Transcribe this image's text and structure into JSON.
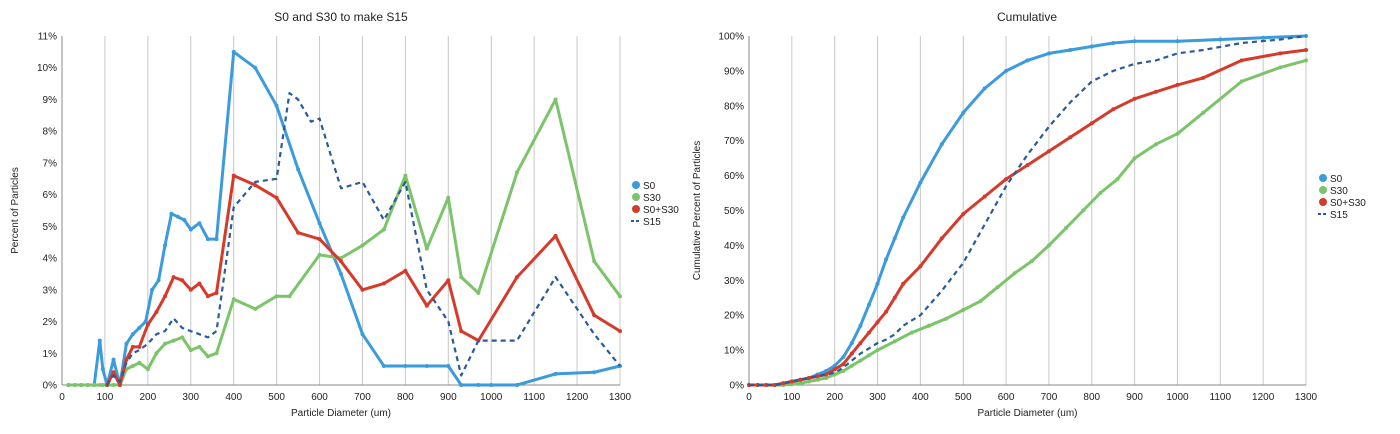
{
  "chart_data": [
    {
      "type": "line",
      "title": "S0 and S30 to make S15",
      "xlabel": "Particle Diameter (um)",
      "ylabel": "Percent of Particles",
      "xlim": [
        0,
        1300
      ],
      "ylim": [
        0,
        11
      ],
      "xticks": [
        "0",
        "100",
        "200",
        "300",
        "400",
        "500",
        "600",
        "700",
        "800",
        "900",
        "1000",
        "1100",
        "1200",
        "1300"
      ],
      "yticks": [
        "0%",
        "1%",
        "2%",
        "3%",
        "4%",
        "5%",
        "6%",
        "7%",
        "8%",
        "9%",
        "10%",
        "11%"
      ],
      "grid": "vertical",
      "legend": "right",
      "series": [
        {
          "name": "S0",
          "color": "#3b9bdc",
          "style": "solid",
          "x": [
            15,
            30,
            45,
            60,
            75,
            88,
            95,
            105,
            120,
            135,
            150,
            165,
            180,
            195,
            210,
            225,
            240,
            255,
            270,
            285,
            300,
            320,
            340,
            360,
            400,
            450,
            500,
            550,
            600,
            650,
            700,
            750,
            800,
            850,
            900,
            930,
            970,
            1000,
            1060,
            1150,
            1240,
            1300
          ],
          "y": [
            0,
            0,
            0,
            0,
            0,
            1.4,
            0.5,
            0,
            0.8,
            0,
            1.3,
            1.6,
            1.8,
            2.0,
            3.0,
            3.3,
            4.4,
            5.4,
            5.3,
            5.2,
            4.9,
            5.1,
            4.6,
            4.6,
            10.5,
            10.0,
            8.8,
            6.8,
            5.1,
            3.5,
            1.6,
            0.6,
            0.6,
            0.6,
            0.6,
            0,
            0,
            0,
            0,
            0.35,
            0.4,
            0.6
          ]
        },
        {
          "name": "S30",
          "color": "#7cc46a",
          "style": "solid",
          "x": [
            15,
            30,
            45,
            60,
            75,
            88,
            95,
            105,
            120,
            135,
            150,
            165,
            180,
            200,
            220,
            240,
            260,
            280,
            300,
            320,
            340,
            360,
            400,
            450,
            500,
            530,
            600,
            650,
            700,
            750,
            800,
            850,
            900,
            930,
            970,
            1060,
            1150,
            1240,
            1300
          ],
          "y": [
            0,
            0,
            0,
            0,
            0,
            0,
            0,
            0,
            0,
            0,
            0.5,
            0.6,
            0.7,
            0.5,
            1.0,
            1.3,
            1.4,
            1.5,
            1.1,
            1.2,
            0.9,
            1.0,
            2.7,
            2.4,
            2.8,
            2.8,
            4.1,
            4.0,
            4.4,
            4.9,
            6.6,
            4.3,
            5.9,
            3.4,
            2.9,
            6.7,
            9.0,
            3.9,
            2.8
          ]
        },
        {
          "name": "S0+S30",
          "color": "#d63a2a",
          "style": "solid",
          "x": [
            105,
            120,
            135,
            150,
            165,
            180,
            200,
            220,
            240,
            260,
            280,
            300,
            320,
            340,
            360,
            400,
            450,
            500,
            550,
            600,
            650,
            700,
            750,
            800,
            850,
            900,
            930,
            970,
            1060,
            1150,
            1240,
            1300
          ],
          "y": [
            0,
            0.4,
            0,
            0.8,
            1.2,
            1.2,
            1.9,
            2.3,
            2.8,
            3.4,
            3.3,
            3.0,
            3.2,
            2.8,
            2.9,
            6.6,
            6.3,
            5.9,
            4.8,
            4.6,
            3.9,
            3.0,
            3.2,
            3.6,
            2.5,
            3.3,
            1.7,
            1.4,
            3.4,
            4.7,
            2.2,
            1.7
          ]
        },
        {
          "name": "S15",
          "color": "#2a5b9a",
          "style": "dashed",
          "x": [
            105,
            120,
            135,
            150,
            165,
            180,
            200,
            220,
            240,
            260,
            280,
            300,
            320,
            340,
            360,
            400,
            450,
            500,
            530,
            550,
            580,
            600,
            650,
            700,
            750,
            800,
            850,
            900,
            930,
            970,
            1060,
            1150,
            1240,
            1300
          ],
          "y": [
            0,
            0.3,
            0.1,
            0.7,
            1.0,
            1.1,
            1.3,
            1.6,
            1.7,
            2.1,
            1.8,
            1.7,
            1.6,
            1.5,
            1.7,
            5.6,
            6.4,
            6.5,
            9.2,
            9.0,
            8.3,
            8.4,
            6.2,
            6.4,
            5.2,
            6.4,
            3.0,
            2.0,
            0.3,
            1.4,
            1.4,
            3.4,
            1.6,
            0.6
          ]
        }
      ]
    },
    {
      "type": "line",
      "title": "Cumulative",
      "xlabel": "Particle Diameter (um)",
      "ylabel": "Cumulative Percent of Particles",
      "xlim": [
        0,
        1300
      ],
      "ylim": [
        0,
        100
      ],
      "xticks": [
        "0",
        "100",
        "200",
        "300",
        "400",
        "500",
        "600",
        "700",
        "800",
        "900",
        "1000",
        "1100",
        "1200",
        "1300"
      ],
      "yticks": [
        "0%",
        "10%",
        "20%",
        "30%",
        "40%",
        "50%",
        "60%",
        "70%",
        "80%",
        "90%",
        "100%"
      ],
      "grid": "vertical",
      "legend": "right",
      "series": [
        {
          "name": "S0",
          "color": "#3b9bdc",
          "style": "solid",
          "x": [
            0,
            20,
            40,
            60,
            80,
            100,
            120,
            140,
            160,
            180,
            200,
            220,
            240,
            260,
            280,
            300,
            320,
            340,
            360,
            400,
            450,
            500,
            550,
            600,
            650,
            700,
            750,
            800,
            850,
            900,
            1000,
            1100,
            1200,
            1300
          ],
          "y": [
            0,
            0,
            0,
            0,
            0.5,
            1,
            1.5,
            2,
            3,
            4,
            5.5,
            8,
            12,
            17,
            23,
            29,
            36,
            42,
            48,
            58,
            69,
            78,
            85,
            90,
            93,
            95,
            96,
            97,
            98,
            98.5,
            98.5,
            99,
            99.5,
            100
          ]
        },
        {
          "name": "S30",
          "color": "#7cc46a",
          "style": "solid",
          "x": [
            0,
            20,
            40,
            60,
            80,
            100,
            120,
            140,
            160,
            180,
            200,
            220,
            240,
            260,
            280,
            300,
            340,
            380,
            420,
            460,
            500,
            540,
            580,
            620,
            660,
            700,
            740,
            780,
            820,
            860,
            900,
            950,
            1000,
            1060,
            1150,
            1240,
            1300
          ],
          "y": [
            0,
            0,
            0,
            0,
            0,
            0.2,
            0.5,
            1,
            1.5,
            2,
            3,
            4,
            5.5,
            7,
            8.5,
            10,
            12.5,
            15,
            17,
            19,
            21.5,
            24,
            28,
            32,
            35.5,
            40,
            45,
            50,
            55,
            59,
            65,
            69,
            72,
            78,
            87,
            91,
            93
          ]
        },
        {
          "name": "S0+S30",
          "color": "#d63a2a",
          "style": "solid",
          "x": [
            0,
            20,
            40,
            60,
            80,
            100,
            120,
            140,
            160,
            180,
            200,
            220,
            240,
            260,
            280,
            300,
            320,
            340,
            360,
            400,
            450,
            500,
            550,
            600,
            650,
            700,
            750,
            800,
            850,
            900,
            950,
            1000,
            1060,
            1150,
            1240,
            1300
          ],
          "y": [
            0,
            0,
            0,
            0,
            0.5,
            1,
            1.5,
            2,
            2.5,
            3,
            4.5,
            6,
            9,
            12,
            15,
            18,
            21,
            25,
            29,
            34,
            42,
            49,
            54,
            59,
            63,
            67,
            71,
            75,
            79,
            82,
            84,
            86,
            88,
            93,
            95,
            96
          ]
        },
        {
          "name": "S15",
          "color": "#2a5b9a",
          "style": "dashed",
          "x": [
            0,
            20,
            40,
            60,
            80,
            100,
            120,
            140,
            160,
            180,
            200,
            220,
            240,
            260,
            280,
            300,
            320,
            340,
            360,
            400,
            450,
            500,
            550,
            600,
            650,
            700,
            750,
            800,
            850,
            900,
            950,
            1000,
            1060,
            1150,
            1240,
            1300
          ],
          "y": [
            0,
            0,
            0,
            0,
            0.5,
            1,
            1.5,
            2,
            2.5,
            3,
            3.5,
            5,
            7,
            9,
            10.5,
            12,
            13,
            14.5,
            17,
            20,
            27,
            35,
            46,
            57,
            66,
            74,
            81,
            87,
            90,
            92,
            93,
            95,
            96,
            98,
            99,
            100
          ]
        }
      ]
    }
  ]
}
